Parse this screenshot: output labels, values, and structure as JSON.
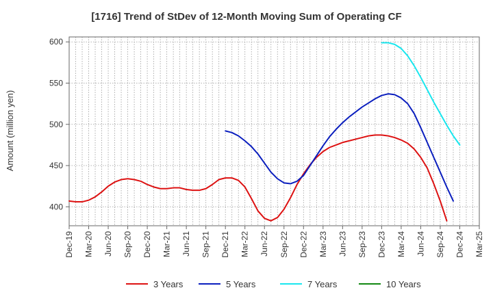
{
  "chart_data": {
    "type": "line",
    "title": "[1716]  Trend of StDev of 12-Month Moving Sum of Operating CF",
    "xlabel": "",
    "ylabel": "Amount (million yen)",
    "ylim": [
      377,
      606
    ],
    "y_ticks": [
      400,
      450,
      500,
      550,
      600
    ],
    "x_start": "Dec-19",
    "x_end": "Mar-25",
    "x_ticks": [
      "Dec-19",
      "Mar-20",
      "Jun-20",
      "Sep-20",
      "Dec-20",
      "Mar-21",
      "Jun-21",
      "Sep-21",
      "Dec-21",
      "Mar-22",
      "Jun-22",
      "Sep-22",
      "Dec-22",
      "Mar-23",
      "Jun-23",
      "Sep-23",
      "Dec-23",
      "Mar-24",
      "Jun-24",
      "Sep-24",
      "Dec-24",
      "Mar-25"
    ],
    "grid": true,
    "legend_position": "bottom",
    "series": [
      {
        "name": "3 Years",
        "color": "#dd1111",
        "start": "Dec-19",
        "values": [
          407,
          406,
          406,
          408,
          412,
          418,
          425,
          430,
          433,
          434,
          433,
          431,
          427,
          424,
          422,
          422,
          423,
          423,
          421,
          420,
          420,
          422,
          427,
          433,
          435,
          435,
          432,
          424,
          410,
          395,
          386,
          383,
          387,
          397,
          411,
          427,
          440,
          451,
          460,
          467,
          472,
          475,
          478,
          480,
          482,
          484,
          486,
          487,
          487,
          486,
          484,
          481,
          477,
          470,
          460,
          447,
          428,
          407,
          383
        ]
      },
      {
        "name": "5 Years",
        "color": "#0a1ebe",
        "start": "Dec-21",
        "values": [
          492,
          490,
          486,
          480,
          473,
          464,
          453,
          442,
          434,
          429,
          428,
          431,
          438,
          450,
          462,
          474,
          485,
          494,
          502,
          509,
          515,
          521,
          526,
          531,
          535,
          537,
          536,
          532,
          525,
          513,
          496,
          478,
          460,
          442,
          424,
          407
        ]
      },
      {
        "name": "7 Years",
        "color": "#18e6ee",
        "start": "Dec-23",
        "values": [
          599,
          599,
          597,
          592,
          583,
          571,
          557,
          542,
          527,
          513,
          499,
          486,
          475
        ]
      },
      {
        "name": "10 Years",
        "color": "#118811",
        "start": "Dec-24",
        "values": []
      }
    ]
  }
}
